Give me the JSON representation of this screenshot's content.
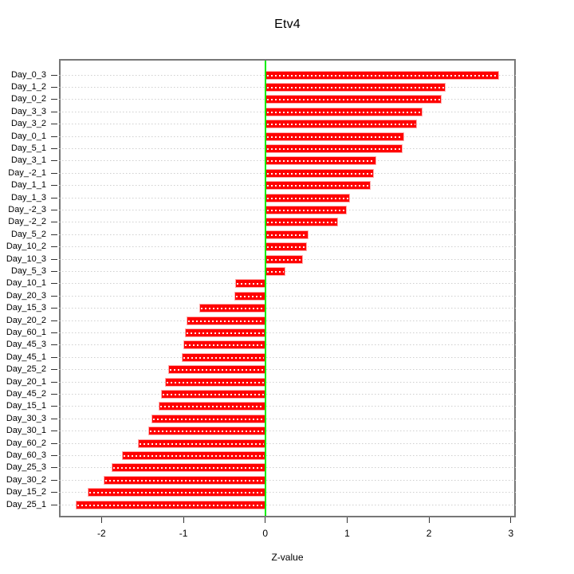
{
  "chart_data": {
    "type": "bar",
    "orientation": "horizontal",
    "title": "Etv4",
    "xlabel": "Z-value",
    "ylabel": "",
    "categories": [
      "Day_0_3",
      "Day_1_2",
      "Day_0_2",
      "Day_3_3",
      "Day_3_2",
      "Day_0_1",
      "Day_5_1",
      "Day_3_1",
      "Day_-2_1",
      "Day_1_1",
      "Day_1_3",
      "Day_-2_3",
      "Day_-2_2",
      "Day_5_2",
      "Day_10_2",
      "Day_10_3",
      "Day_5_3",
      "Day_10_1",
      "Day_20_3",
      "Day_15_3",
      "Day_20_2",
      "Day_60_1",
      "Day_45_3",
      "Day_45_1",
      "Day_25_2",
      "Day_20_1",
      "Day_45_2",
      "Day_15_1",
      "Day_30_3",
      "Day_30_1",
      "Day_60_2",
      "Day_60_3",
      "Day_25_3",
      "Day_30_2",
      "Day_15_2",
      "Day_25_1"
    ],
    "values": [
      2.86,
      2.2,
      2.15,
      1.92,
      1.85,
      1.7,
      1.68,
      1.36,
      1.33,
      1.29,
      1.03,
      1.0,
      0.89,
      0.53,
      0.51,
      0.46,
      0.25,
      -0.37,
      -0.38,
      -0.81,
      -0.96,
      -0.98,
      -1.0,
      -1.02,
      -1.19,
      -1.22,
      -1.27,
      -1.3,
      -1.39,
      -1.43,
      -1.56,
      -1.75,
      -1.88,
      -1.97,
      -2.17,
      -2.32
    ],
    "xticks": [
      -2,
      -1,
      0,
      1,
      2,
      3
    ],
    "xlim": [
      -2.52,
      3.06
    ],
    "grid": true,
    "grid_style": "dotted",
    "legend": false,
    "zero_line_value": 0,
    "colors": {
      "bar_fill": "#ff0000",
      "bar_border": "#ffaaaa",
      "bar_inner_dots": "#ffffff",
      "zero_line": "#00ee00",
      "gridline": "#cfcfcf",
      "plot_box_border": "#777777",
      "text": "#000000",
      "background": "#ffffff"
    }
  }
}
